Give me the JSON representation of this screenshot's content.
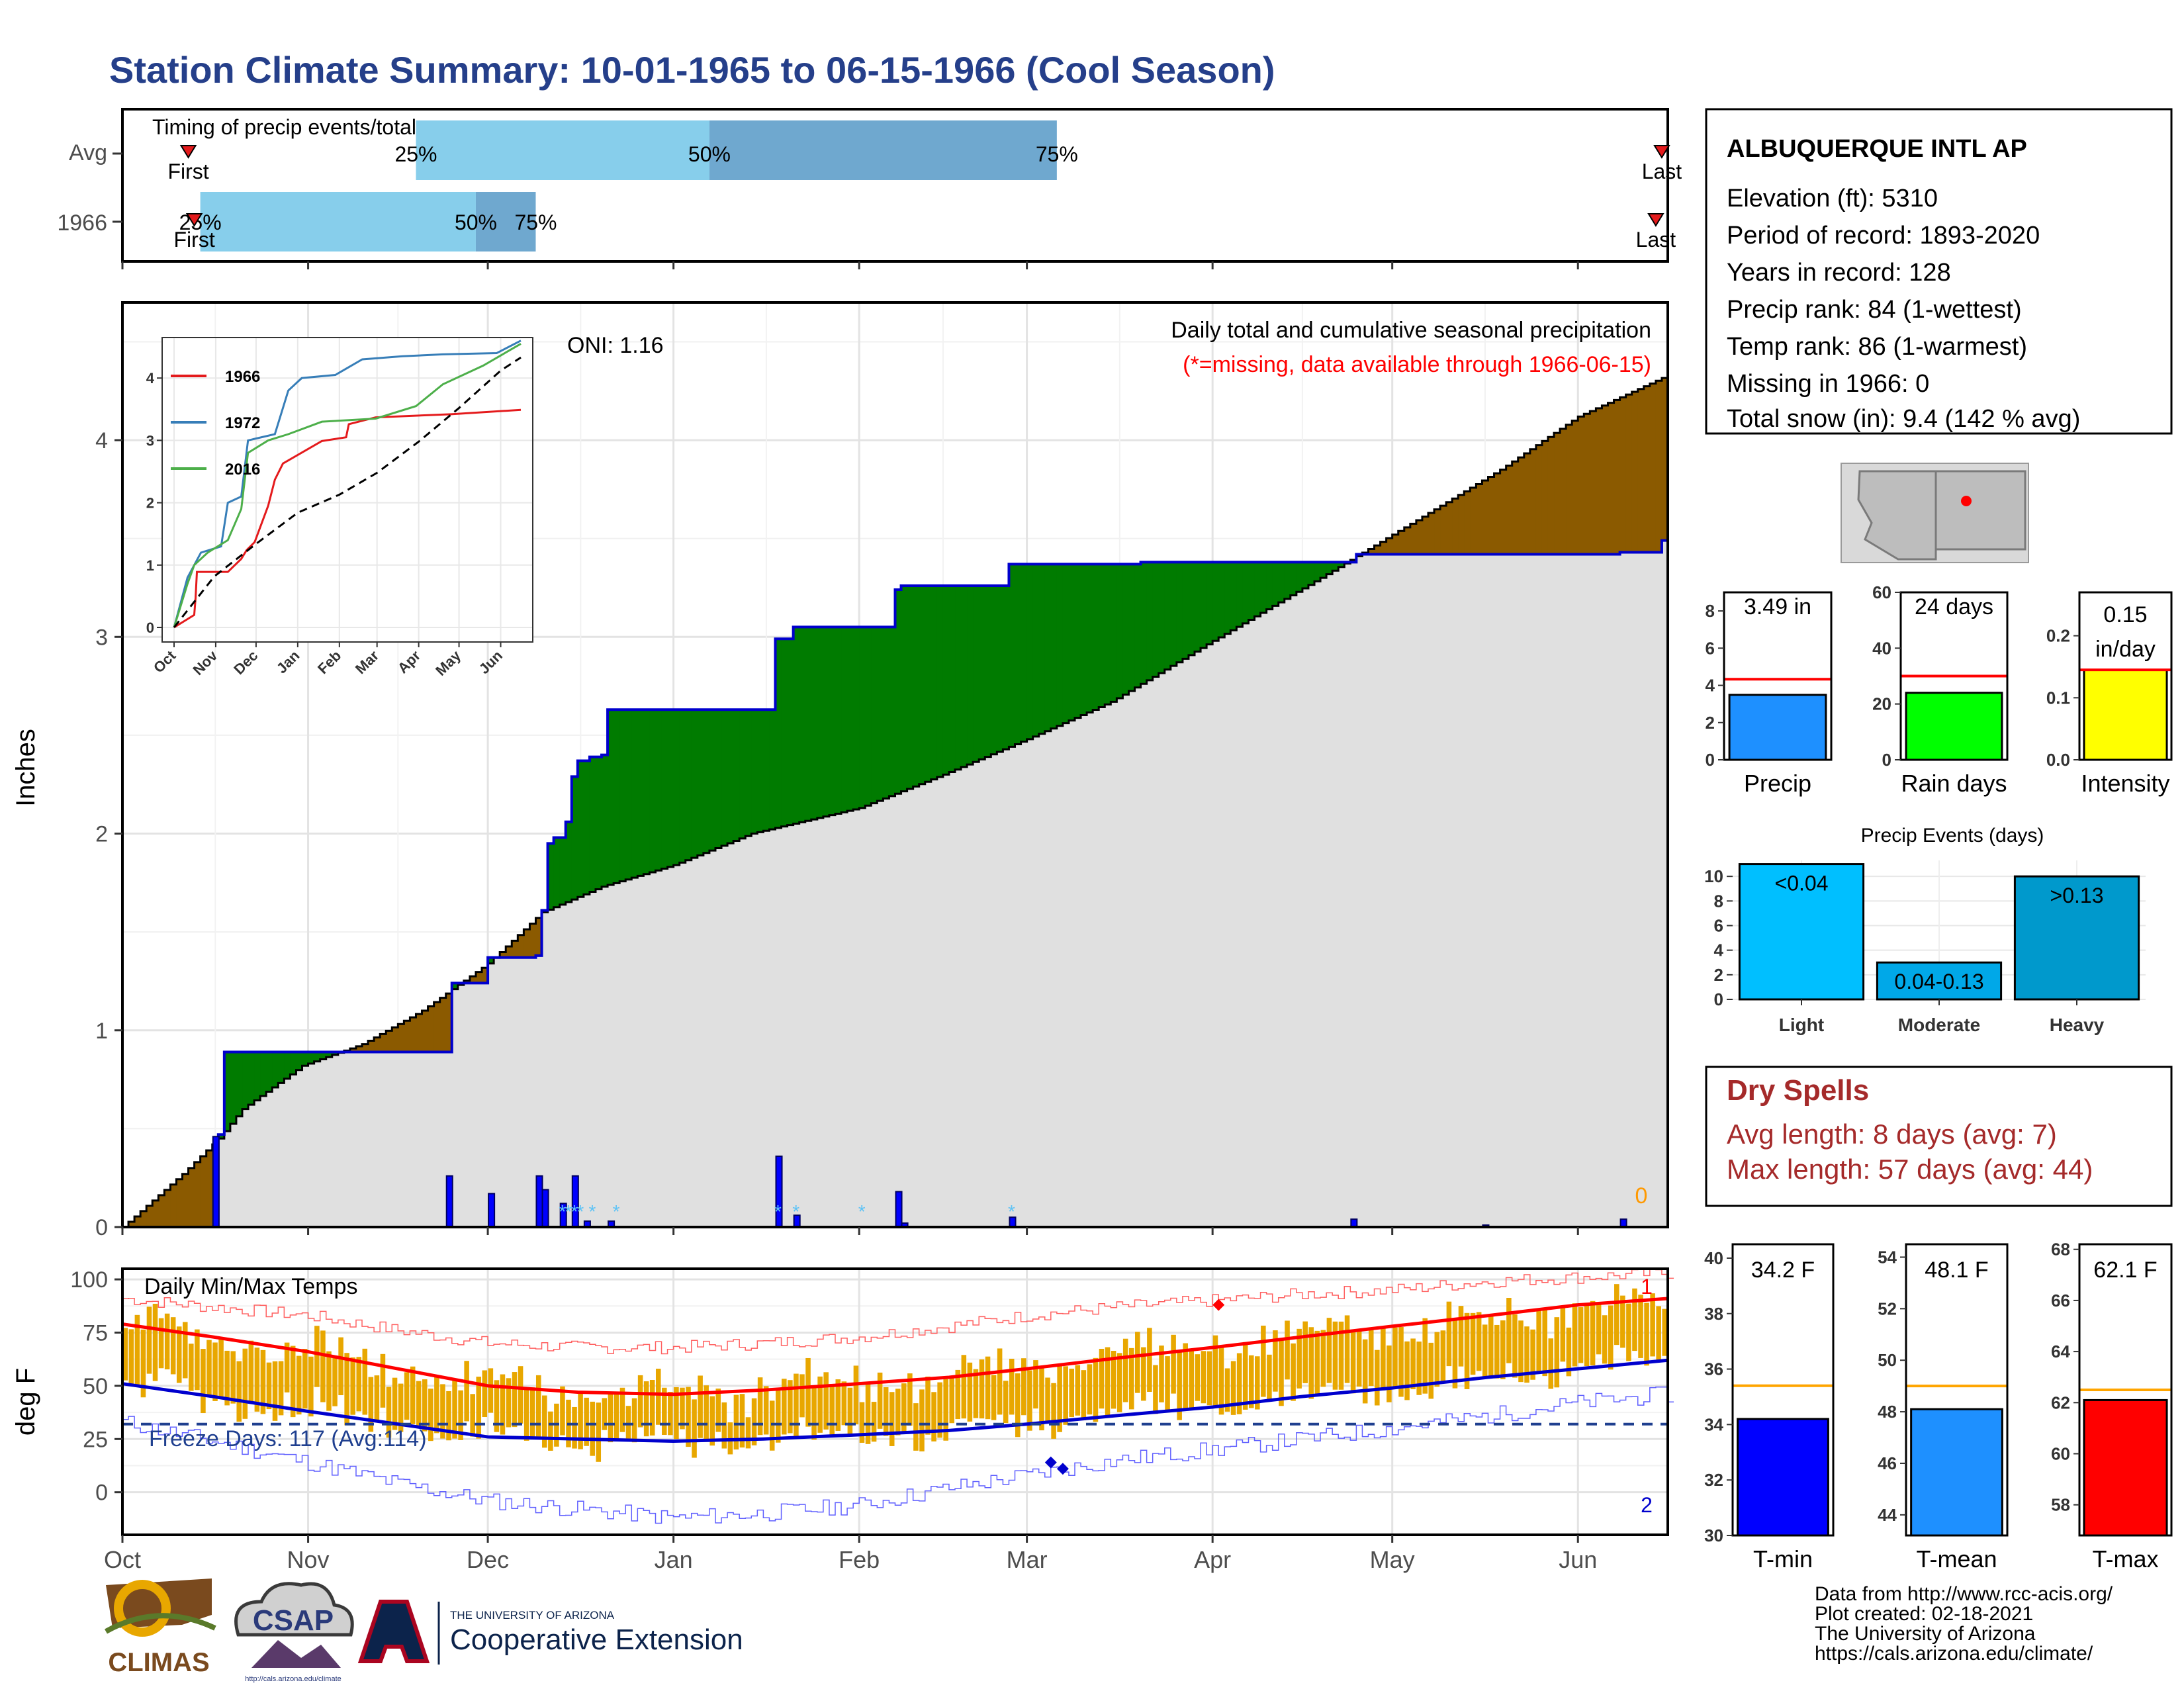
{
  "page": {
    "title": "Station Climate Summary: 10-01-1965 to 06-15-1966 (Cool Season)",
    "source_lines": [
      "Data from http://www.rcc-acis.org/",
      "Plot created: 02-18-2021",
      "The University of Arizona",
      "https://cals.arizona.edu/climate/"
    ],
    "logos": {
      "climas": "CLIMAS",
      "csap": "CSAP",
      "csap_url": "http://cals.arizona.edu/climate",
      "ua_line1": "THE UNIVERSITY OF ARIZONA",
      "ua_line2": "Cooperative Extension"
    }
  },
  "station": {
    "name": "ALBUQUERQUE INTL AP",
    "lines": [
      "Elevation (ft): 5310",
      "Period of record: 1893-2020",
      "Years in record: 128",
      "Precip rank: 84 (1-wettest)",
      "Temp rank: 86 (1-warmest)",
      "Missing in 1966: 0",
      "Total snow (in): 9.4 (142 % avg)"
    ]
  },
  "dry_spells": {
    "title": "Dry Spells",
    "avg": "Avg length: 8 days (avg: 7)",
    "max": "Max length: 57 days (avg: 44)"
  },
  "chart_data": [
    {
      "id": "timing",
      "type": "bar",
      "title": "Timing of precip events/totals",
      "rows": [
        {
          "label": "Avg",
          "p25": 49,
          "p50": 98,
          "p75": 156,
          "first": 11,
          "last": 257,
          "p25_label": "25%",
          "p50_label": "50%",
          "p75_label": "75%",
          "first_label": "First",
          "last_label": "Last"
        },
        {
          "label": "1966",
          "p25": 13,
          "p50": 59,
          "p75": 69,
          "first": 12,
          "last": 256,
          "p25_label": "25%",
          "p50_label": "50%",
          "p75_label": "75%",
          "first_label": "First",
          "last_label": "Last"
        }
      ],
      "colors": {
        "early": "#87ceeb",
        "late": "#6fa8cf",
        "marker": "#e41a1c"
      }
    },
    {
      "id": "precip",
      "type": "area",
      "title": "Daily total and cumulative seasonal precipitation",
      "subtitle": "(*=missing, data available through 1966-06-15)",
      "ylabel": "Inches",
      "ylim": [
        0,
        4.7
      ],
      "yticks": [
        0,
        1,
        2,
        3,
        4
      ],
      "oni_label": "ONI: 1.16",
      "missing_count": "0",
      "months": [
        "Oct",
        "Nov",
        "Dec",
        "Jan",
        "Feb",
        "Mar",
        "Apr",
        "May",
        "Jun"
      ],
      "month_days": [
        0,
        31,
        61,
        92,
        123,
        151,
        182,
        212,
        243
      ],
      "ndays": 258,
      "cumulative_1966": [
        [
          0,
          0
        ],
        [
          15,
          0
        ],
        [
          16,
          0.47
        ],
        [
          17,
          0.89
        ],
        [
          54,
          0.89
        ],
        [
          55,
          1.24
        ],
        [
          60,
          1.24
        ],
        [
          61,
          1.37
        ],
        [
          68,
          1.37
        ],
        [
          69,
          1.38
        ],
        [
          70,
          1.61
        ],
        [
          71,
          1.95
        ],
        [
          72,
          1.98
        ],
        [
          73,
          1.98
        ],
        [
          74,
          2.06
        ],
        [
          75,
          2.29
        ],
        [
          76,
          2.37
        ],
        [
          77,
          2.37
        ],
        [
          78,
          2.39
        ],
        [
          80,
          2.4
        ],
        [
          81,
          2.63
        ],
        [
          108,
          2.63
        ],
        [
          109,
          2.99
        ],
        [
          111,
          2.99
        ],
        [
          112,
          3.05
        ],
        [
          128,
          3.05
        ],
        [
          129,
          3.24
        ],
        [
          130,
          3.26
        ],
        [
          147,
          3.26
        ],
        [
          148,
          3.37
        ],
        [
          170,
          3.38
        ],
        [
          205,
          3.38
        ],
        [
          206,
          3.42
        ],
        [
          250,
          3.43
        ],
        [
          257,
          3.49
        ],
        [
          258,
          3.49
        ]
      ],
      "average_cumulative": [
        [
          0,
          0
        ],
        [
          10,
          0.27
        ],
        [
          16,
          0.45
        ],
        [
          20,
          0.6
        ],
        [
          30,
          0.82
        ],
        [
          40,
          0.93
        ],
        [
          50,
          1.1
        ],
        [
          61,
          1.34
        ],
        [
          70,
          1.6
        ],
        [
          80,
          1.73
        ],
        [
          92,
          1.84
        ],
        [
          105,
          2.0
        ],
        [
          123,
          2.13
        ],
        [
          137,
          2.3
        ],
        [
          151,
          2.48
        ],
        [
          165,
          2.67
        ],
        [
          182,
          2.98
        ],
        [
          200,
          3.3
        ],
        [
          212,
          3.52
        ],
        [
          230,
          3.85
        ],
        [
          243,
          4.12
        ],
        [
          258,
          4.33
        ]
      ],
      "daily_bars": [
        [
          15,
          0.46
        ],
        [
          54,
          0.26
        ],
        [
          61,
          0.17
        ],
        [
          69,
          0.26
        ],
        [
          70,
          0.19
        ],
        [
          73,
          0.12
        ],
        [
          75,
          0.26
        ],
        [
          77,
          0.03
        ],
        [
          81,
          0.03
        ],
        [
          109,
          0.36
        ],
        [
          112,
          0.06
        ],
        [
          129,
          0.18
        ],
        [
          130,
          0.02
        ],
        [
          148,
          0.05
        ],
        [
          205,
          0.04
        ],
        [
          227,
          0.01
        ],
        [
          250,
          0.04
        ]
      ],
      "snow_days": [
        73,
        74,
        75,
        76,
        78,
        82,
        109,
        112,
        123,
        148
      ],
      "inset": {
        "yticks": [
          0,
          1,
          2,
          3,
          4
        ],
        "months": [
          "Oct",
          "Nov",
          "Dec",
          "Jan",
          "Feb",
          "Mar",
          "Apr",
          "May",
          "Jun"
        ],
        "series": [
          {
            "name": "1966",
            "color": "#e41a1c",
            "values": [
              [
                0,
                0
              ],
              [
                15,
                0.2
              ],
              [
                16,
                0.47
              ],
              [
                17,
                0.89
              ],
              [
                40,
                0.89
              ],
              [
                50,
                1.1
              ],
              [
                54,
                1.24
              ],
              [
                60,
                1.37
              ],
              [
                70,
                1.95
              ],
              [
                75,
                2.37
              ],
              [
                81,
                2.63
              ],
              [
                110,
                2.99
              ],
              [
                128,
                3.05
              ],
              [
                130,
                3.26
              ],
              [
                150,
                3.37
              ],
              [
                206,
                3.42
              ],
              [
                258,
                3.49
              ]
            ]
          },
          {
            "name": "1972",
            "color": "#377eb8",
            "values": [
              [
                0,
                0
              ],
              [
                10,
                0.8
              ],
              [
                20,
                1.2
              ],
              [
                35,
                1.3
              ],
              [
                40,
                2.0
              ],
              [
                50,
                2.1
              ],
              [
                55,
                3.0
              ],
              [
                75,
                3.1
              ],
              [
                85,
                3.8
              ],
              [
                95,
                4.0
              ],
              [
                120,
                4.05
              ],
              [
                140,
                4.3
              ],
              [
                170,
                4.35
              ],
              [
                200,
                4.38
              ],
              [
                240,
                4.4
              ],
              [
                258,
                4.6
              ]
            ]
          },
          {
            "name": "2016",
            "color": "#4daf4a",
            "values": [
              [
                0,
                0
              ],
              [
                10,
                0.7
              ],
              [
                15,
                1.0
              ],
              [
                25,
                1.2
              ],
              [
                40,
                1.4
              ],
              [
                50,
                1.9
              ],
              [
                55,
                2.8
              ],
              [
                70,
                3.0
              ],
              [
                85,
                3.1
              ],
              [
                110,
                3.3
              ],
              [
                150,
                3.35
              ],
              [
                180,
                3.55
              ],
              [
                200,
                3.9
              ],
              [
                230,
                4.2
              ],
              [
                258,
                4.55
              ]
            ]
          },
          {
            "name": "average",
            "color": "#000000",
            "values": [
              [
                0,
                0
              ],
              [
                30,
                0.82
              ],
              [
                61,
                1.34
              ],
              [
                92,
                1.84
              ],
              [
                123,
                2.13
              ],
              [
                151,
                2.48
              ],
              [
                182,
                2.98
              ],
              [
                212,
                3.52
              ],
              [
                243,
                4.12
              ],
              [
                258,
                4.33
              ]
            ]
          }
        ]
      },
      "colors": {
        "above": "#8b5a00",
        "below": "#007b00",
        "avg_fill": "#e0e0e0",
        "line": "#0000cd",
        "bars": "#0000ff",
        "snow": "#5fc3f5",
        "missing": "#ff9900"
      }
    },
    {
      "id": "temps",
      "type": "bar",
      "title": "Daily Min/Max Temps",
      "ylabel": "deg F",
      "ylim": [
        -20,
        105
      ],
      "yticks": [
        0,
        25,
        50,
        75,
        100
      ],
      "freeze_label": "Freeze Days: 117 (Avg:114)",
      "freeze_line": 32,
      "record_high_count": "1",
      "record_low_count": "2",
      "months": [
        "Oct",
        "Nov",
        "Dec",
        "Jan",
        "Feb",
        "Mar",
        "Apr",
        "May",
        "Jun"
      ],
      "normal_max_knots": [
        [
          0,
          79
        ],
        [
          15,
          73
        ],
        [
          31,
          66
        ],
        [
          46,
          58
        ],
        [
          61,
          50
        ],
        [
          76,
          47
        ],
        [
          92,
          46
        ],
        [
          107,
          48
        ],
        [
          123,
          51
        ],
        [
          138,
          54
        ],
        [
          151,
          58
        ],
        [
          166,
          63
        ],
        [
          182,
          68
        ],
        [
          197,
          73
        ],
        [
          212,
          78
        ],
        [
          228,
          83
        ],
        [
          243,
          88
        ],
        [
          258,
          91
        ]
      ],
      "normal_min_knots": [
        [
          0,
          51
        ],
        [
          15,
          45
        ],
        [
          31,
          38
        ],
        [
          46,
          32
        ],
        [
          61,
          26
        ],
        [
          76,
          25
        ],
        [
          92,
          24
        ],
        [
          107,
          25
        ],
        [
          123,
          27
        ],
        [
          138,
          29
        ],
        [
          151,
          32
        ],
        [
          166,
          36
        ],
        [
          182,
          40
        ],
        [
          197,
          45
        ],
        [
          212,
          49
        ],
        [
          228,
          54
        ],
        [
          243,
          58
        ],
        [
          258,
          62
        ]
      ],
      "record_max_knots": [
        [
          0,
          91
        ],
        [
          15,
          87
        ],
        [
          31,
          83
        ],
        [
          46,
          76
        ],
        [
          61,
          70
        ],
        [
          76,
          68
        ],
        [
          92,
          68
        ],
        [
          107,
          70
        ],
        [
          123,
          73
        ],
        [
          138,
          78
        ],
        [
          151,
          83
        ],
        [
          166,
          87
        ],
        [
          182,
          90
        ],
        [
          197,
          93
        ],
        [
          212,
          95
        ],
        [
          228,
          99
        ],
        [
          243,
          101
        ],
        [
          258,
          103
        ]
      ],
      "record_min_knots": [
        [
          0,
          33
        ],
        [
          15,
          24
        ],
        [
          31,
          14
        ],
        [
          46,
          4
        ],
        [
          61,
          -4
        ],
        [
          76,
          -8
        ],
        [
          92,
          -12
        ],
        [
          107,
          -10
        ],
        [
          123,
          -6
        ],
        [
          138,
          2
        ],
        [
          151,
          8
        ],
        [
          166,
          15
        ],
        [
          182,
          20
        ],
        [
          197,
          25
        ],
        [
          212,
          30
        ],
        [
          228,
          36
        ],
        [
          243,
          42
        ],
        [
          258,
          46
        ]
      ],
      "record_markers": [
        {
          "day": 183,
          "value": 88,
          "kind": "high"
        },
        {
          "day": 155,
          "value": 14,
          "kind": "low"
        },
        {
          "day": 157,
          "value": 11,
          "kind": "low"
        }
      ],
      "colors": {
        "bars": "#e8a700",
        "normal_max": "#ff0000",
        "normal_min": "#0000cd",
        "record_max": "#ff6060",
        "record_min": "#6060ff",
        "freeze": "#1f3f8f"
      }
    },
    {
      "id": "season_precip",
      "type": "bar",
      "panels": [
        {
          "label": "Precip",
          "value": 3.49,
          "value_label": "3.49 in",
          "avg": 4.33,
          "ylim": [
            0,
            9
          ],
          "yticks": [
            0,
            2,
            4,
            6,
            8
          ],
          "color": "#1e90ff"
        },
        {
          "label": "Rain days",
          "value": 24,
          "value_label": "24 days",
          "avg": 30,
          "ylim": [
            0,
            60
          ],
          "yticks": [
            0,
            20,
            40,
            60
          ],
          "color": "#00ff00"
        },
        {
          "label": "Intensity",
          "value": 0.145,
          "value_label": "0.15\nin/day",
          "avg": 0.145,
          "ylim": [
            0,
            0.27
          ],
          "yticks": [
            0.0,
            0.1,
            0.2
          ],
          "tick_labels": [
            "0.0",
            "0.1",
            "0.2"
          ],
          "color": "#ffff00"
        }
      ]
    },
    {
      "id": "precip_events",
      "type": "bar",
      "title": "Precip Events (days)",
      "categories": [
        "Light",
        "Moderate",
        "Heavy"
      ],
      "bar_labels": [
        "<0.04",
        "0.04-0.13",
        ">0.13"
      ],
      "values": [
        11,
        3,
        10
      ],
      "ylim": [
        0,
        11.3
      ],
      "yticks": [
        0,
        2,
        4,
        6,
        8,
        10
      ],
      "colors": [
        "#00bfff",
        "#00a8e8",
        "#0099cc"
      ]
    },
    {
      "id": "season_temps",
      "type": "bar",
      "panels": [
        {
          "label": "T-min",
          "value": 34.2,
          "value_label": "34.2 F",
          "avg": 35.4,
          "ylim": [
            30,
            40.5
          ],
          "yticks": [
            30,
            32,
            34,
            36,
            38,
            40
          ],
          "color": "#0000ff"
        },
        {
          "label": "T-mean",
          "value": 48.1,
          "value_label": "48.1 F",
          "avg": 49.0,
          "ylim": [
            43.2,
            54.5
          ],
          "yticks": [
            44,
            46,
            48,
            50,
            52,
            54
          ],
          "color": "#1e90ff"
        },
        {
          "label": "T-max",
          "value": 62.1,
          "value_label": "62.1 F",
          "avg": 62.5,
          "ylim": [
            56.8,
            68.2
          ],
          "yticks": [
            58,
            60,
            62,
            64,
            66,
            68
          ],
          "color": "#ff0000"
        }
      ]
    }
  ]
}
